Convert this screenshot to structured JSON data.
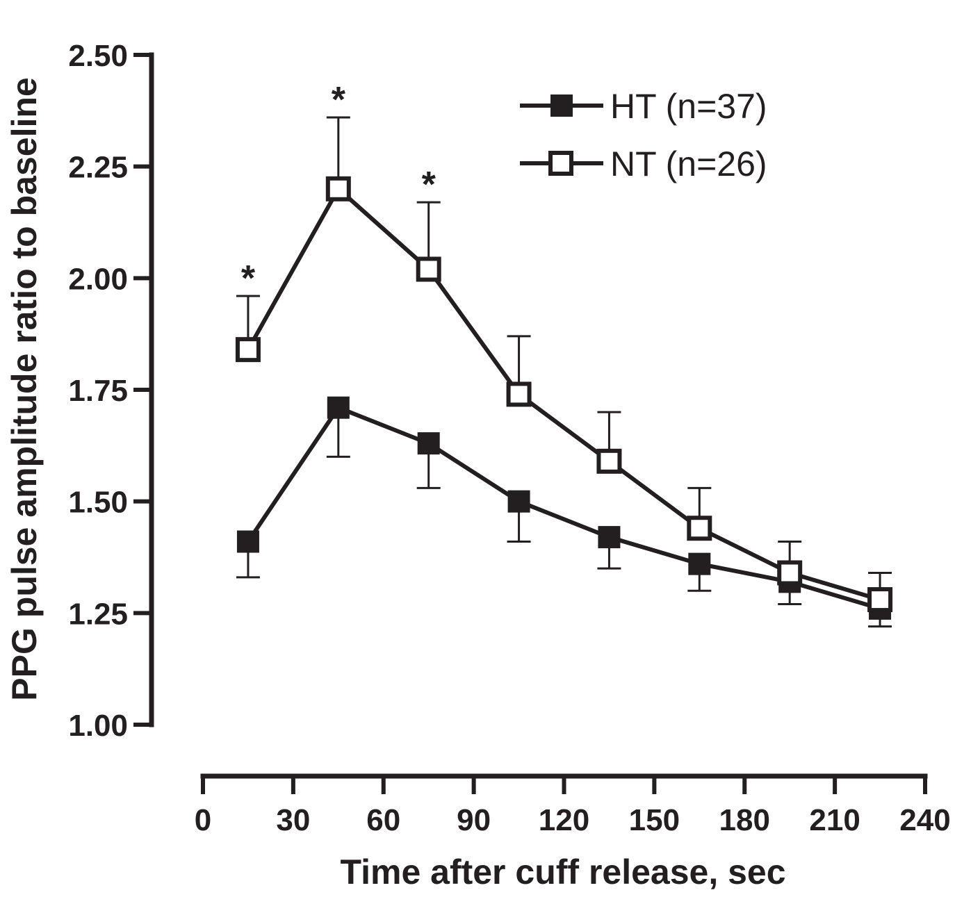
{
  "chart_data": {
    "type": "line",
    "xlabel": "Time after cuff release, sec",
    "ylabel": "PPG pulse amplitude ratio to baseline",
    "xlim": [
      0,
      240
    ],
    "ylim": [
      1.0,
      2.5
    ],
    "x_ticks": [
      "0",
      "30",
      "60",
      "90",
      "120",
      "150",
      "180",
      "210",
      "240"
    ],
    "y_ticks": [
      "1.00",
      "1.25",
      "1.50",
      "1.75",
      "2.00",
      "2.25",
      "2.50"
    ],
    "x": [
      15,
      45,
      75,
      105,
      135,
      165,
      195,
      225
    ],
    "series": [
      {
        "name": "HT (n=37)",
        "marker": "filled-square",
        "values": [
          1.41,
          1.71,
          1.63,
          1.5,
          1.42,
          1.36,
          1.32,
          1.26
        ],
        "error": [
          0.08,
          0.11,
          0.1,
          0.09,
          0.07,
          0.06,
          0.05,
          0.04
        ],
        "error_direction": "down"
      },
      {
        "name": "NT (n=26)",
        "marker": "open-square",
        "values": [
          1.84,
          2.2,
          2.02,
          1.74,
          1.59,
          1.44,
          1.34,
          1.28
        ],
        "error": [
          0.12,
          0.16,
          0.15,
          0.13,
          0.11,
          0.09,
          0.07,
          0.06
        ],
        "error_direction": "up"
      }
    ],
    "significance": [
      {
        "x": 15,
        "label": "*"
      },
      {
        "x": 45,
        "label": "*"
      },
      {
        "x": 75,
        "label": "*"
      }
    ],
    "legend_position": "top-right",
    "grid": false
  },
  "colors": {
    "ink": "#231f20",
    "background": "#ffffff"
  }
}
